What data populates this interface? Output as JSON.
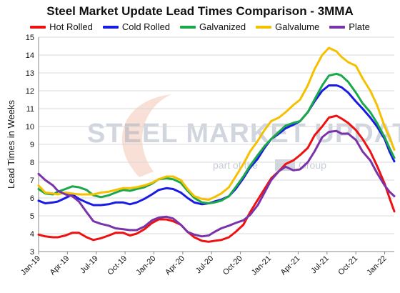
{
  "chart_data": {
    "type": "line",
    "title": "Steel Market Update Lead Times Comparison - 3MMA",
    "ylabel": "Lead Times in Weeks",
    "xlabel": "",
    "ylim": [
      3,
      15
    ],
    "yticks": [
      3,
      4,
      5,
      6,
      7,
      8,
      9,
      10,
      11,
      12,
      13,
      14,
      15
    ],
    "grid": true,
    "legend_position": "top",
    "x_tick_labels": [
      "Jan-19",
      "Apr-19",
      "Jul-19",
      "Oct-19",
      "Jan-20",
      "Apr-20",
      "Jul-20",
      "Oct-20",
      "Jan-21",
      "Apr-21",
      "Jul-21",
      "Oct-21",
      "Jan-22"
    ],
    "x_tick_positions": [
      0,
      3,
      6,
      9,
      12,
      15,
      18,
      21,
      24,
      27,
      30,
      33,
      36
    ],
    "x_range": [
      0,
      37
    ],
    "watermark": {
      "main": "STEEL MARKET UPDATE",
      "sub_left": "part of the",
      "sub_right": "Group"
    },
    "series": [
      {
        "name": "Hot Rolled",
        "color": "#ee1111",
        "x": [
          0,
          0.7,
          1.5,
          2,
          2.8,
          3.5,
          4.2,
          5,
          5.7,
          6.5,
          7.3,
          8,
          8.8,
          9.5,
          10.2,
          11,
          11.8,
          12.5,
          13.3,
          14,
          14.8,
          15.5,
          16.2,
          17,
          17.7,
          18.3,
          19,
          19.8,
          20.5,
          21.3,
          22,
          22.8,
          23.5,
          24.2,
          25,
          25.7,
          26.5,
          27.2,
          28,
          28.7,
          29.5,
          30.2,
          31,
          31.5,
          32.2,
          33,
          33.7,
          34.5,
          35.2,
          36,
          36.5,
          37
        ],
        "y": [
          3.95,
          3.85,
          3.8,
          3.8,
          3.9,
          4.05,
          4.05,
          3.8,
          3.65,
          3.75,
          3.9,
          4.05,
          4.05,
          3.9,
          4.0,
          4.25,
          4.6,
          4.8,
          4.8,
          4.7,
          4.5,
          4.1,
          3.8,
          3.6,
          3.55,
          3.6,
          3.65,
          3.8,
          4.1,
          4.5,
          5.2,
          5.9,
          6.5,
          7.1,
          7.5,
          7.9,
          8.1,
          8.4,
          8.8,
          9.5,
          10.0,
          10.5,
          10.6,
          10.45,
          10.2,
          9.8,
          9.3,
          8.6,
          7.8,
          6.8,
          6.0,
          5.25
        ]
      },
      {
        "name": "Cold Rolled",
        "color": "#1a1ae6",
        "x": [
          0,
          0.7,
          1.5,
          2,
          2.8,
          3.5,
          4.2,
          5,
          5.7,
          6.5,
          7.3,
          8,
          8.8,
          9.5,
          10.2,
          11,
          11.8,
          12.5,
          13.3,
          14,
          14.8,
          15.5,
          16.2,
          17,
          17.7,
          18.3,
          19,
          19.8,
          20.5,
          21.3,
          22,
          22.8,
          23.5,
          24.2,
          25,
          25.7,
          26.5,
          27.2,
          28,
          28.7,
          29.5,
          30.2,
          31,
          31.5,
          32.2,
          33,
          33.7,
          34.5,
          35.2,
          36,
          36.5,
          37
        ],
        "y": [
          5.85,
          5.7,
          5.75,
          5.8,
          6.0,
          6.2,
          5.95,
          5.75,
          5.6,
          5.6,
          5.65,
          5.75,
          5.75,
          5.65,
          5.75,
          5.95,
          6.2,
          6.45,
          6.55,
          6.5,
          6.3,
          6.0,
          5.75,
          5.65,
          5.7,
          5.8,
          5.9,
          6.1,
          6.5,
          7.1,
          7.7,
          8.2,
          8.8,
          9.3,
          9.6,
          9.9,
          10.1,
          10.3,
          10.8,
          11.4,
          12.0,
          12.3,
          12.3,
          12.2,
          11.9,
          11.4,
          11.0,
          10.5,
          10.0,
          9.3,
          8.6,
          8.05
        ]
      },
      {
        "name": "Galvanized",
        "color": "#1aa84a",
        "x": [
          0,
          0.7,
          1.5,
          2,
          2.8,
          3.5,
          4.2,
          5,
          5.7,
          6.5,
          7.3,
          8,
          8.8,
          9.5,
          10.2,
          11,
          11.8,
          12.5,
          13.3,
          14,
          14.8,
          15.5,
          16.2,
          17,
          17.7,
          18.3,
          19,
          19.8,
          20.5,
          21.3,
          22,
          22.8,
          23.5,
          24.2,
          25,
          25.7,
          26.5,
          27.2,
          28,
          28.7,
          29.5,
          30.2,
          31,
          31.5,
          32.2,
          33,
          33.7,
          34.5,
          35.2,
          36,
          36.5,
          37
        ],
        "y": [
          6.5,
          6.25,
          6.2,
          6.35,
          6.5,
          6.65,
          6.6,
          6.45,
          6.15,
          6.05,
          6.15,
          6.3,
          6.45,
          6.4,
          6.5,
          6.6,
          6.8,
          7.05,
          7.1,
          7.05,
          6.85,
          6.4,
          6.0,
          5.75,
          5.7,
          5.75,
          5.85,
          6.1,
          6.6,
          7.2,
          7.8,
          8.4,
          8.9,
          9.3,
          9.7,
          10.05,
          10.2,
          10.3,
          10.8,
          11.5,
          12.3,
          12.85,
          12.95,
          12.85,
          12.5,
          11.9,
          11.3,
          10.8,
          10.2,
          9.4,
          8.8,
          8.25
        ]
      },
      {
        "name": "Galvalume",
        "color": "#f5c000",
        "x": [
          0,
          0.7,
          1.5,
          2,
          2.8,
          3.5,
          4.2,
          5,
          5.7,
          6.5,
          7.3,
          8,
          8.8,
          9.5,
          10.2,
          11,
          11.8,
          12.5,
          13.3,
          14,
          14.8,
          15.5,
          16.2,
          17,
          17.7,
          18.3,
          19,
          19.8,
          20.5,
          21.3,
          22,
          22.8,
          23.5,
          24.2,
          25,
          25.7,
          26.5,
          27.2,
          28,
          28.7,
          29.5,
          30.2,
          31,
          31.5,
          32.2,
          33,
          33.7,
          34.5,
          35.2,
          36,
          36.5,
          37
        ],
        "y": [
          6.7,
          6.3,
          6.25,
          6.2,
          6.3,
          6.25,
          6.2,
          6.2,
          6.2,
          6.3,
          6.35,
          6.45,
          6.55,
          6.55,
          6.6,
          6.7,
          6.85,
          7.05,
          7.2,
          7.2,
          7.0,
          6.5,
          6.1,
          5.95,
          5.9,
          6.05,
          6.25,
          6.6,
          7.2,
          7.9,
          8.6,
          9.2,
          9.8,
          10.3,
          10.5,
          10.8,
          11.2,
          11.5,
          12.3,
          13.2,
          14.0,
          14.4,
          14.2,
          13.9,
          13.6,
          13.4,
          12.7,
          12.0,
          11.2,
          10.0,
          9.4,
          8.7
        ]
      },
      {
        "name": "Plate",
        "color": "#7a33a8",
        "x": [
          0,
          0.7,
          1.5,
          2,
          2.8,
          3.5,
          4.2,
          5,
          5.7,
          6.5,
          7.3,
          8,
          8.8,
          9.5,
          10.2,
          11,
          11.8,
          12.5,
          13.3,
          14,
          14.8,
          15.5,
          16.2,
          17,
          17.7,
          18.3,
          19,
          19.8,
          20.5,
          21.3,
          22,
          22.8,
          23.5,
          24.2,
          25,
          25.7,
          26.5,
          27.2,
          28,
          28.7,
          29.5,
          30.2,
          31,
          31.5,
          32.2,
          33,
          33.7,
          34.5,
          35.2,
          36,
          36.5,
          37
        ],
        "y": [
          7.35,
          7.0,
          6.7,
          6.4,
          6.2,
          6.1,
          5.8,
          5.2,
          4.7,
          4.55,
          4.45,
          4.3,
          4.25,
          4.2,
          4.2,
          4.4,
          4.75,
          4.9,
          4.95,
          4.85,
          4.5,
          4.1,
          3.95,
          3.85,
          3.9,
          4.1,
          4.3,
          4.45,
          4.6,
          4.75,
          5.05,
          5.6,
          6.3,
          7.0,
          7.5,
          7.75,
          7.55,
          7.6,
          8.0,
          8.6,
          9.4,
          9.7,
          9.75,
          9.6,
          9.6,
          9.25,
          8.6,
          8.1,
          7.4,
          6.7,
          6.35,
          6.1
        ]
      }
    ]
  }
}
